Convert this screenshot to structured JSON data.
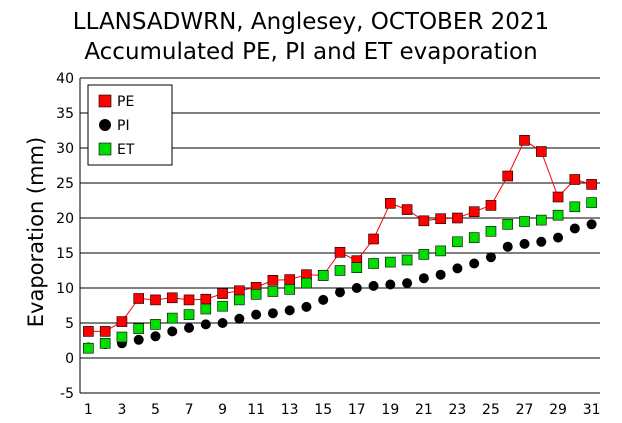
{
  "chart_data": {
    "type": "line",
    "title": "LLANSADWRN, Anglesey, OCTOBER 2021",
    "subtitle": "Accumulated PE,  PI and ET evaporation",
    "ylabel": "Evaporation (mm)",
    "xlabel": "",
    "ylim": [
      -5,
      40
    ],
    "yticks": [
      -5,
      0,
      5,
      10,
      15,
      20,
      25,
      30,
      35,
      40
    ],
    "xlim": [
      1,
      31
    ],
    "xticks": [
      1,
      3,
      5,
      7,
      9,
      11,
      13,
      15,
      17,
      19,
      21,
      23,
      25,
      27,
      29,
      31
    ],
    "grid": "horizontal",
    "legend_position": "top-left",
    "x": [
      1,
      2,
      3,
      4,
      5,
      6,
      7,
      8,
      9,
      10,
      11,
      12,
      13,
      14,
      15,
      16,
      17,
      18,
      19,
      20,
      21,
      22,
      23,
      24,
      25,
      26,
      27,
      28,
      29,
      30,
      31
    ],
    "series": [
      {
        "name": "PE",
        "color": "#ff0000",
        "marker": "square",
        "line": true,
        "values": [
          3.8,
          3.8,
          5.2,
          8.5,
          8.3,
          8.6,
          8.3,
          8.4,
          9.2,
          9.6,
          10.1,
          11.1,
          11.2,
          11.9,
          11.8,
          15.1,
          13.9,
          17.0,
          22.1,
          21.2,
          19.6,
          19.9,
          20.0,
          20.9,
          21.8,
          26.0,
          31.1,
          29.5,
          23.0,
          25.5,
          24.8
        ]
      },
      {
        "name": "PI",
        "color": "#000000",
        "marker": "circle",
        "line": false,
        "values": [
          1.5,
          2.0,
          2.1,
          2.6,
          3.1,
          3.8,
          4.3,
          4.8,
          5.0,
          5.6,
          6.2,
          6.4,
          6.8,
          7.3,
          8.3,
          9.4,
          10.0,
          10.3,
          10.5,
          10.7,
          11.4,
          11.9,
          12.8,
          13.5,
          14.4,
          15.9,
          16.3,
          16.6,
          17.2,
          18.5,
          19.1
        ]
      },
      {
        "name": "ET",
        "color": "#00dd00",
        "marker": "square",
        "line": false,
        "values": [
          1.4,
          2.1,
          3.0,
          4.2,
          4.8,
          5.7,
          6.2,
          7.0,
          7.4,
          8.3,
          9.1,
          9.5,
          9.8,
          10.7,
          11.8,
          12.5,
          12.9,
          13.5,
          13.7,
          14.0,
          14.8,
          15.3,
          16.6,
          17.2,
          18.1,
          19.1,
          19.5,
          19.7,
          20.4,
          21.6,
          22.2
        ]
      }
    ]
  }
}
